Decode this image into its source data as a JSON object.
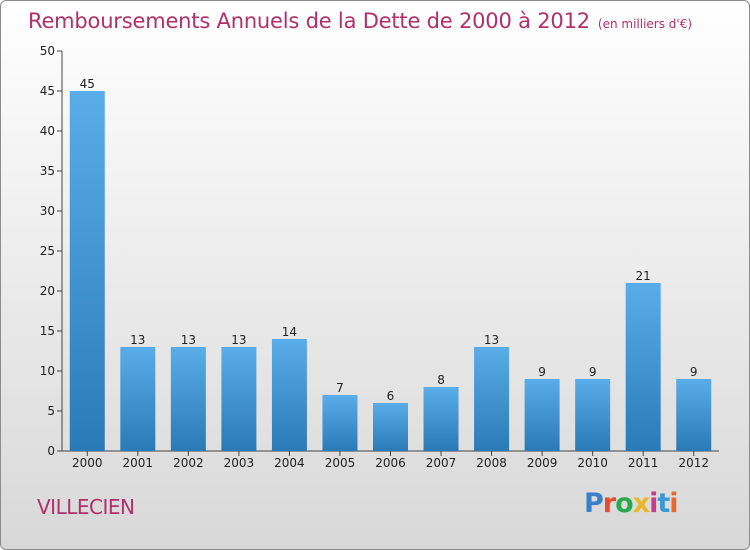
{
  "chart_data": {
    "type": "bar",
    "title": "Remboursements Annuels de la Dette de 2000 à 2012",
    "subtitle": "(en milliers d'€)",
    "xlabel": "",
    "ylabel": "",
    "categories": [
      "2000",
      "2001",
      "2002",
      "2003",
      "2004",
      "2005",
      "2006",
      "2007",
      "2008",
      "2009",
      "2010",
      "2011",
      "2012"
    ],
    "values": [
      45,
      13,
      13,
      13,
      14,
      7,
      6,
      8,
      13,
      9,
      9,
      21,
      9
    ],
    "ylim": [
      0,
      50
    ],
    "yticks": [
      0,
      5,
      10,
      15,
      20,
      25,
      30,
      35,
      40,
      45,
      50
    ],
    "grid": false,
    "legend": "none",
    "bar_color_top": "#5aade8",
    "bar_color_bottom": "#2a7ab8"
  },
  "footer": {
    "commune": "VILLECIEN",
    "brand": "Proxiti",
    "brand_colors": [
      "#3a7fc8",
      "#e84a2a",
      "#2aa84a",
      "#e8b82a",
      "#c83a8a",
      "#3a9ad8",
      "#e86a2a"
    ]
  },
  "colors": {
    "title": "#b0306a",
    "axis": "#444444"
  }
}
